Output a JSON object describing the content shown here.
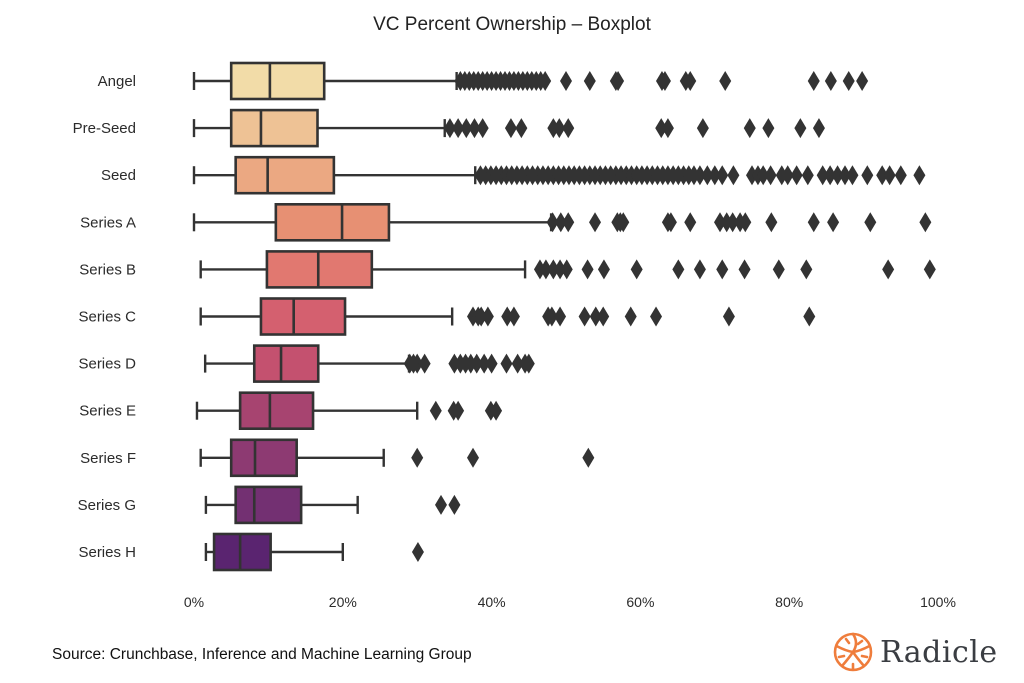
{
  "chart_data": {
    "type": "boxplot",
    "title": "VC Percent Ownership – Boxplot",
    "xlabel": "",
    "ylabel": "",
    "xlim": [
      0,
      100
    ],
    "xticks": [
      0,
      20,
      40,
      60,
      80,
      100
    ],
    "xtick_labels": [
      "0%",
      "20%",
      "40%",
      "60%",
      "80%",
      "100%"
    ],
    "orientation": "horizontal",
    "grid": false,
    "categories": [
      "Angel",
      "Pre-Seed",
      "Seed",
      "Series A",
      "Series B",
      "Series C",
      "Series D",
      "Series E",
      "Series F",
      "Series G",
      "Series H"
    ],
    "series": [
      {
        "name": "Angel",
        "color": "#f2dca8",
        "whislo": 0,
        "q1": 5.0,
        "med": 10.2,
        "q3": 17.5,
        "whishi": 35.3,
        "fliers": [
          35.8,
          36.4,
          37.0,
          37.6,
          38.2,
          38.8,
          39.4,
          40.0,
          40.6,
          41.2,
          41.8,
          42.4,
          43.0,
          43.6,
          44.2,
          44.8,
          45.4,
          46.0,
          46.6,
          47.2,
          50.0,
          53.2,
          56.7,
          57.0,
          62.9,
          63.3,
          66.1,
          66.7,
          71.4,
          83.3,
          85.6,
          88.0,
          89.8
        ]
      },
      {
        "name": "Pre-Seed",
        "color": "#eec295",
        "whislo": 0,
        "q1": 5.0,
        "med": 9.0,
        "q3": 16.6,
        "whishi": 33.7,
        "fliers": [
          34.4,
          35.5,
          36.6,
          37.7,
          38.8,
          42.6,
          44.0,
          48.3,
          49.1,
          50.3,
          62.8,
          63.7,
          68.4,
          74.7,
          77.2,
          81.5,
          84.0
        ]
      },
      {
        "name": "Seed",
        "color": "#eba882",
        "whislo": 0,
        "q1": 5.6,
        "med": 9.9,
        "q3": 18.8,
        "whishi": 37.8,
        "fliers": [
          38.5,
          39.2,
          39.9,
          40.6,
          41.3,
          42.0,
          42.7,
          43.4,
          44.1,
          44.8,
          45.5,
          46.2,
          46.9,
          47.6,
          48.3,
          49.0,
          49.7,
          50.4,
          51.1,
          51.8,
          52.5,
          53.2,
          53.9,
          54.6,
          55.3,
          56.0,
          56.7,
          57.4,
          58.1,
          58.8,
          59.5,
          60.2,
          60.9,
          61.6,
          62.3,
          63.0,
          63.7,
          64.4,
          65.1,
          65.8,
          66.5,
          67.2,
          68.0,
          69.0,
          70.0,
          71.0,
          72.5,
          75.0,
          75.8,
          76.5,
          77.5,
          79.0,
          79.8,
          81.0,
          82.5,
          84.5,
          85.5,
          86.5,
          87.5,
          88.5,
          90.5,
          92.5,
          93.5,
          95.0,
          97.5
        ]
      },
      {
        "name": "Series A",
        "color": "#e79073",
        "whislo": 0,
        "q1": 11.0,
        "med": 19.9,
        "q3": 26.2,
        "whishi": 48.0,
        "fliers": [
          48.2,
          49.3,
          50.3,
          53.9,
          56.9,
          57.3,
          57.7,
          63.7,
          64.1,
          66.7,
          70.7,
          71.6,
          72.4,
          73.4,
          74.1,
          77.6,
          83.3,
          85.9,
          90.9,
          98.3
        ]
      },
      {
        "name": "Series B",
        "color": "#e17870",
        "whislo": 0.9,
        "q1": 9.8,
        "med": 16.7,
        "q3": 23.9,
        "whishi": 44.5,
        "fliers": [
          46.5,
          47.3,
          48.3,
          49.2,
          50.1,
          52.9,
          55.1,
          59.5,
          65.1,
          68.0,
          71.0,
          74.0,
          78.6,
          82.3,
          93.3,
          98.9
        ]
      },
      {
        "name": "Series C",
        "color": "#d4606f",
        "whislo": 0.9,
        "q1": 9.0,
        "med": 13.4,
        "q3": 20.3,
        "whishi": 34.7,
        "fliers": [
          37.5,
          38.2,
          38.6,
          39.5,
          42.1,
          43.0,
          47.6,
          48.1,
          49.2,
          52.5,
          54.0,
          55.0,
          58.7,
          62.1,
          71.9,
          82.7
        ]
      },
      {
        "name": "Series D",
        "color": "#c4516f",
        "whislo": 1.5,
        "q1": 8.1,
        "med": 11.7,
        "q3": 16.7,
        "whishi": 28.9,
        "fliers": [
          29.0,
          29.5,
          30.0,
          31.0,
          35.0,
          35.8,
          36.5,
          37.2,
          38.0,
          39.0,
          40.0,
          42.0,
          43.5,
          44.5,
          45.0
        ]
      },
      {
        "name": "Series E",
        "color": "#a74470",
        "whislo": 0.4,
        "q1": 6.2,
        "med": 10.2,
        "q3": 16.0,
        "whishi": 30.0,
        "fliers": [
          32.5,
          34.9,
          35.5,
          39.9,
          40.6
        ]
      },
      {
        "name": "Series F",
        "color": "#8d3a72",
        "whislo": 0.9,
        "q1": 5.0,
        "med": 8.2,
        "q3": 13.8,
        "whishi": 25.5,
        "fliers": [
          30.0,
          37.5,
          53.0
        ]
      },
      {
        "name": "Series G",
        "color": "#733072",
        "whislo": 1.6,
        "q1": 5.6,
        "med": 8.1,
        "q3": 14.4,
        "whishi": 22.0,
        "fliers": [
          33.2,
          35.0
        ]
      },
      {
        "name": "Series H",
        "color": "#5a2470",
        "whislo": 1.6,
        "q1": 2.7,
        "med": 6.2,
        "q3": 10.3,
        "whishi": 20.0,
        "fliers": [
          30.1
        ]
      }
    ]
  },
  "footer": {
    "source": "Source: Crunchbase, Inference and Machine Learning Group",
    "logo_text": "Radicle",
    "logo_color": "#ef7d3c"
  },
  "colors": {
    "outline": "#333333",
    "text": "#2b2b2b"
  }
}
